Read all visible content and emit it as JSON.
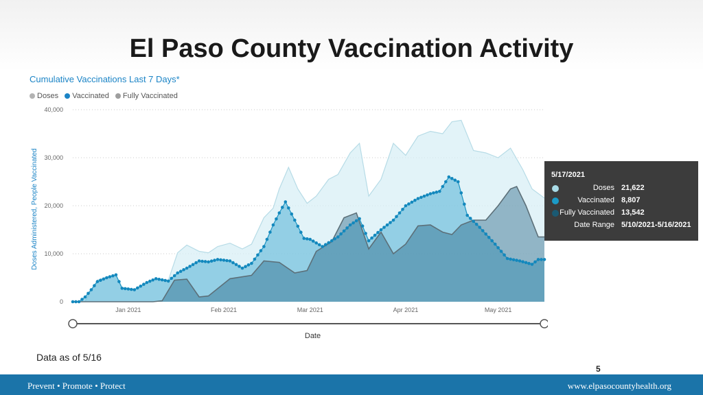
{
  "slide": {
    "title": "El Paso County Vaccination Activity",
    "data_note": "Data as of 5/16",
    "page_number": "5"
  },
  "footer": {
    "tagline": "Prevent • Promote • Protect",
    "website": "www.elpasocountyhealth.org"
  },
  "tooltip": {
    "date": "5/17/2021",
    "rows": [
      {
        "label": "Doses",
        "value": "21,622",
        "color": "#a9dbe7"
      },
      {
        "label": "Vaccinated",
        "value": "8,807",
        "color": "#1b9bc7"
      },
      {
        "label": "Fully Vaccinated",
        "value": "13,542",
        "color": "#1a5a73"
      },
      {
        "label": "Date Range",
        "value": "5/10/2021-5/16/2021",
        "color": ""
      }
    ]
  },
  "chart_data": {
    "type": "area",
    "title": "Cumulative Vaccinations Last 7 Days*",
    "xlabel": "Date",
    "ylabel": "Doses Administered, People Vaccinated",
    "ylim": [
      0,
      40000
    ],
    "yticks": [
      0,
      10000,
      20000,
      30000,
      40000
    ],
    "ytick_labels": [
      "0",
      "10,000",
      "20,000",
      "30,000",
      "40,000"
    ],
    "xlim": [
      "2020-12-14",
      "2021-05-16"
    ],
    "xticks": [
      {
        "date": "2021-01-01",
        "label": "Jan 2021"
      },
      {
        "date": "2021-02-01",
        "label": "Feb 2021"
      },
      {
        "date": "2021-03-01",
        "label": "Mar 2021"
      },
      {
        "date": "2021-04-01",
        "label": "Apr 2021"
      },
      {
        "date": "2021-05-01",
        "label": "May 2021"
      }
    ],
    "grid": true,
    "legend_position": "top-left",
    "series": [
      {
        "name": "Doses",
        "color": "#a9dbe7",
        "points": [
          [
            "2020-12-14",
            0
          ],
          [
            "2020-12-18",
            0
          ],
          [
            "2020-12-20",
            2500
          ],
          [
            "2020-12-22",
            4500
          ],
          [
            "2020-12-25",
            5200
          ],
          [
            "2020-12-28",
            5600
          ],
          [
            "2020-12-30",
            3000
          ],
          [
            "2021-01-03",
            2600
          ],
          [
            "2021-01-07",
            4000
          ],
          [
            "2021-01-10",
            4800
          ],
          [
            "2021-01-14",
            4500
          ],
          [
            "2021-01-17",
            10200
          ],
          [
            "2021-01-20",
            11800
          ],
          [
            "2021-01-24",
            10500
          ],
          [
            "2021-01-27",
            10200
          ],
          [
            "2021-01-30",
            11500
          ],
          [
            "2021-02-03",
            12200
          ],
          [
            "2021-02-07",
            11000
          ],
          [
            "2021-02-10",
            12000
          ],
          [
            "2021-02-14",
            17500
          ],
          [
            "2021-02-17",
            19500
          ],
          [
            "2021-02-19",
            23500
          ],
          [
            "2021-02-22",
            28000
          ],
          [
            "2021-02-25",
            23500
          ],
          [
            "2021-02-28",
            20500
          ],
          [
            "2021-03-03",
            22000
          ],
          [
            "2021-03-07",
            25500
          ],
          [
            "2021-03-10",
            26500
          ],
          [
            "2021-03-14",
            31000
          ],
          [
            "2021-03-17",
            33000
          ],
          [
            "2021-03-20",
            22000
          ],
          [
            "2021-03-24",
            25500
          ],
          [
            "2021-03-28",
            33000
          ],
          [
            "2021-04-01",
            30500
          ],
          [
            "2021-04-05",
            34500
          ],
          [
            "2021-04-09",
            35500
          ],
          [
            "2021-04-13",
            35000
          ],
          [
            "2021-04-16",
            37500
          ],
          [
            "2021-04-19",
            37800
          ],
          [
            "2021-04-23",
            31500
          ],
          [
            "2021-04-27",
            31000
          ],
          [
            "2021-05-01",
            30000
          ],
          [
            "2021-05-05",
            32000
          ],
          [
            "2021-05-09",
            27500
          ],
          [
            "2021-05-12",
            23500
          ],
          [
            "2021-05-16",
            21600
          ]
        ]
      },
      {
        "name": "Vaccinated",
        "color": "#1b9bc7",
        "points": [
          [
            "2020-12-14",
            0
          ],
          [
            "2020-12-16",
            0
          ],
          [
            "2020-12-18",
            1000
          ],
          [
            "2020-12-20",
            2500
          ],
          [
            "2020-12-22",
            4200
          ],
          [
            "2020-12-25",
            5000
          ],
          [
            "2020-12-28",
            5600
          ],
          [
            "2020-12-30",
            2800
          ],
          [
            "2021-01-03",
            2500
          ],
          [
            "2021-01-07",
            4000
          ],
          [
            "2021-01-10",
            4800
          ],
          [
            "2021-01-14",
            4300
          ],
          [
            "2021-01-17",
            6000
          ],
          [
            "2021-01-20",
            7000
          ],
          [
            "2021-01-24",
            8500
          ],
          [
            "2021-01-27",
            8300
          ],
          [
            "2021-01-30",
            8800
          ],
          [
            "2021-02-03",
            8500
          ],
          [
            "2021-02-07",
            7000
          ],
          [
            "2021-02-10",
            8000
          ],
          [
            "2021-02-14",
            11500
          ],
          [
            "2021-02-17",
            16000
          ],
          [
            "2021-02-19",
            18500
          ],
          [
            "2021-02-21",
            20800
          ],
          [
            "2021-02-24",
            17000
          ],
          [
            "2021-02-27",
            13200
          ],
          [
            "2021-03-01",
            13000
          ],
          [
            "2021-03-05",
            11500
          ],
          [
            "2021-03-10",
            13500
          ],
          [
            "2021-03-14",
            16000
          ],
          [
            "2021-03-17",
            17300
          ],
          [
            "2021-03-20",
            12700
          ],
          [
            "2021-03-24",
            15000
          ],
          [
            "2021-03-28",
            17000
          ],
          [
            "2021-04-01",
            20000
          ],
          [
            "2021-04-05",
            21500
          ],
          [
            "2021-04-09",
            22500
          ],
          [
            "2021-04-12",
            23000
          ],
          [
            "2021-04-15",
            26000
          ],
          [
            "2021-04-18",
            25000
          ],
          [
            "2021-04-21",
            18000
          ],
          [
            "2021-04-25",
            15500
          ],
          [
            "2021-04-30",
            12000
          ],
          [
            "2021-05-04",
            9000
          ],
          [
            "2021-05-08",
            8500
          ],
          [
            "2021-05-12",
            7800
          ],
          [
            "2021-05-14",
            8800
          ],
          [
            "2021-05-16",
            8800
          ]
        ]
      },
      {
        "name": "Fully Vaccinated",
        "color": "#1a5a73",
        "points": [
          [
            "2020-12-14",
            0
          ],
          [
            "2021-01-09",
            0
          ],
          [
            "2021-01-12",
            200
          ],
          [
            "2021-01-16",
            4500
          ],
          [
            "2021-01-20",
            4700
          ],
          [
            "2021-01-24",
            1000
          ],
          [
            "2021-01-27",
            1200
          ],
          [
            "2021-02-03",
            4800
          ],
          [
            "2021-02-10",
            5500
          ],
          [
            "2021-02-14",
            8500
          ],
          [
            "2021-02-19",
            8200
          ],
          [
            "2021-02-24",
            6000
          ],
          [
            "2021-02-28",
            6500
          ],
          [
            "2021-03-03",
            10500
          ],
          [
            "2021-03-08",
            12500
          ],
          [
            "2021-03-12",
            17500
          ],
          [
            "2021-03-16",
            18500
          ],
          [
            "2021-03-20",
            11000
          ],
          [
            "2021-03-24",
            14500
          ],
          [
            "2021-03-28",
            10000
          ],
          [
            "2021-04-01",
            12000
          ],
          [
            "2021-04-05",
            15800
          ],
          [
            "2021-04-09",
            16000
          ],
          [
            "2021-04-13",
            14500
          ],
          [
            "2021-04-16",
            14000
          ],
          [
            "2021-04-19",
            16000
          ],
          [
            "2021-04-23",
            17000
          ],
          [
            "2021-04-27",
            17000
          ],
          [
            "2021-05-01",
            20000
          ],
          [
            "2021-05-05",
            23500
          ],
          [
            "2021-05-07",
            24000
          ],
          [
            "2021-05-10",
            20000
          ],
          [
            "2021-05-14",
            13500
          ],
          [
            "2021-05-16",
            13500
          ]
        ]
      }
    ]
  }
}
